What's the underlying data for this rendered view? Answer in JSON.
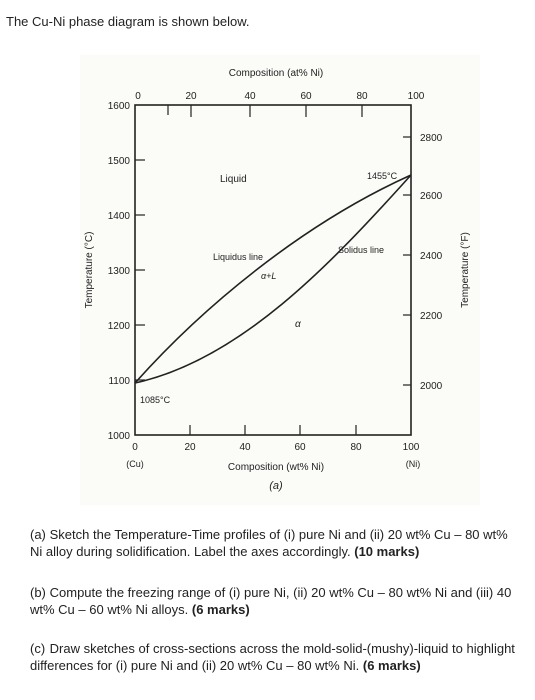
{
  "intro": "The Cu-Ni phase diagram is shown below.",
  "figure": {
    "top_axis_title": "Composition (at% Ni)",
    "top_ticks": [
      "0",
      "20",
      "40",
      "60",
      "80",
      "100"
    ],
    "bottom_axis_title": "Composition (wt% Ni)",
    "bottom_ticks": [
      "0",
      "20",
      "40",
      "60",
      "80",
      "100"
    ],
    "bottom_end_labels": {
      "left": "(Cu)",
      "right": "(Ni)"
    },
    "left_axis_title": "Temperature (°C)",
    "left_ticks": [
      "1000",
      "1100",
      "1200",
      "1300",
      "1400",
      "1500",
      "1600"
    ],
    "right_axis_title": "Temperature (°F)",
    "right_ticks": [
      "2000",
      "2200",
      "2400",
      "2600",
      "2800"
    ],
    "caption": "(a)",
    "labels": {
      "liquid": "Liquid",
      "liquidus": "Liquidus line",
      "solidus": "Solidus line",
      "two_phase": "α+L",
      "alpha": "α",
      "melt_ni": "1455°C",
      "melt_cu": "1085°C"
    }
  },
  "questions": [
    {
      "label": "(a)",
      "text": "Sketch the Temperature-Time profiles of (i) pure Ni and (ii) 20 wt% Cu – 80 wt% Ni alloy during solidification. Label the axes accordingly.",
      "marks": "(10 marks)"
    },
    {
      "label": "(b)",
      "text": "Compute the freezing range of (i) pure Ni, (ii) 20 wt% Cu – 80 wt% Ni and (iii) 40 wt% Cu – 60 wt% Ni alloys.",
      "marks": "(6 marks)"
    },
    {
      "label": "(c)",
      "text": "Draw sketches of cross-sections across the mold-solid-(mushy)-liquid to highlight differences for (i) pure Ni and (ii) 20 wt% Cu – 80 wt% Ni.",
      "marks": "(6 marks)"
    }
  ]
}
